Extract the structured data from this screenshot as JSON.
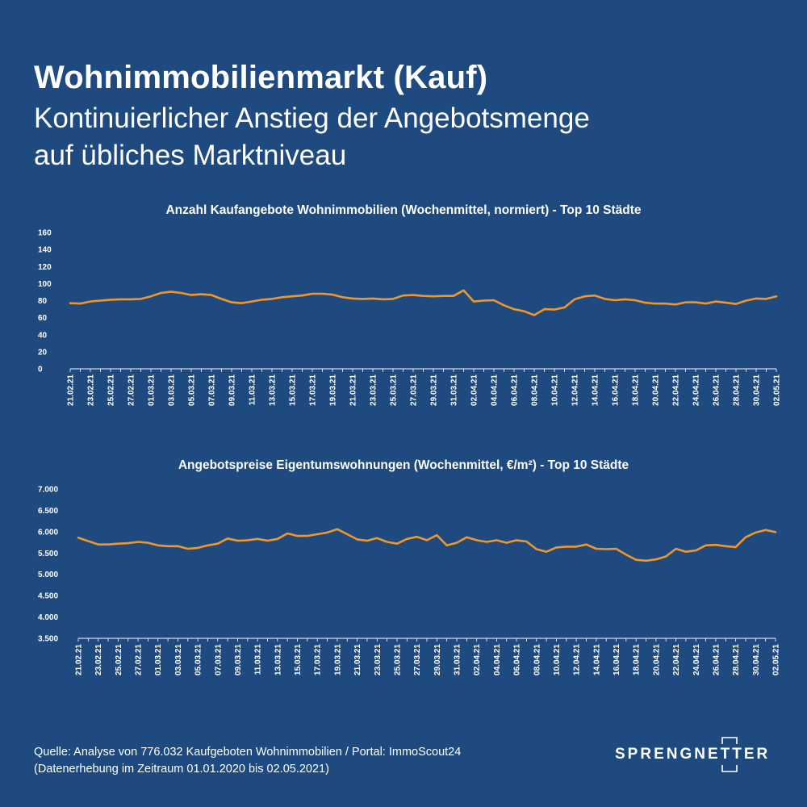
{
  "header": {
    "title": "Wohnimmobilienmarkt (Kauf)",
    "subtitle_line1": "Kontinuierlicher Anstieg der Angebotsmenge",
    "subtitle_line2": "auf übliches Marktniveau"
  },
  "colors": {
    "background": "#1f4a7f",
    "line": "#f0962a",
    "text": "#ffffff"
  },
  "chart_data": [
    {
      "type": "line",
      "title": "Anzahl Kaufangebote Wohnimmobilien (Wochenmittel, normiert) - Top 10 Städte",
      "xlabel": "",
      "ylabel": "",
      "ylim": [
        0,
        160
      ],
      "yticks": [
        0,
        20,
        40,
        60,
        80,
        100,
        120,
        140,
        160
      ],
      "yticklabels": [
        "0",
        "20",
        "40",
        "60",
        "80",
        "100",
        "120",
        "140",
        "160"
      ],
      "xticklabels": [
        "21.02.21",
        "23.02.21",
        "25.02.21",
        "27.02.21",
        "01.03.21",
        "03.03.21",
        "05.03.21",
        "07.03.21",
        "09.03.21",
        "11.03.21",
        "13.03.21",
        "15.03.21",
        "17.03.21",
        "19.03.21",
        "21.03.21",
        "23.03.21",
        "25.03.21",
        "27.03.21",
        "29.03.21",
        "31.03.21",
        "02.04.21",
        "04.04.21",
        "06.04.21",
        "08.04.21",
        "10.04.21",
        "12.04.21",
        "14.04.21",
        "16.04.21",
        "18.04.21",
        "20.04.21",
        "22.04.21",
        "24.04.21",
        "26.04.21",
        "28.04.21",
        "30.04.21",
        "02.05.21"
      ],
      "legend": "none",
      "series": [
        {
          "values": [
            77,
            76.5,
            79,
            80,
            81,
            81.5,
            81.5,
            82,
            85,
            89,
            90.5,
            89,
            86.5,
            87.5,
            86.5,
            82,
            78,
            77,
            79,
            81,
            82,
            84,
            85,
            86,
            88,
            88,
            87,
            84,
            82.5,
            82,
            82.5,
            81.5,
            82,
            86,
            86.5,
            85.5,
            85,
            85.5,
            85.5,
            92,
            79,
            80,
            80.5,
            74.5,
            70,
            67.5,
            63,
            70,
            69.5,
            72,
            81.5,
            85,
            86,
            82,
            80.5,
            81.5,
            80.5,
            77.5,
            76.5,
            76.5,
            75.5,
            78,
            78,
            76.5,
            79,
            77.5,
            76,
            80,
            82.5,
            82,
            85
          ]
        }
      ]
    },
    {
      "type": "line",
      "title": "Angebotspreise Eigentumswohnungen (Wochenmittel, €/m²) - Top 10 Städte",
      "xlabel": "",
      "ylabel": "",
      "ylim": [
        3500,
        7000
      ],
      "yticks": [
        3500,
        4000,
        4500,
        5000,
        5500,
        6000,
        6500,
        7000
      ],
      "yticklabels": [
        "3.500",
        "4.000",
        "4.500",
        "5.000",
        "5.500",
        "6.000",
        "6.500",
        "7.000"
      ],
      "xticklabels": [
        "21.02.21",
        "23.02.21",
        "25.02.21",
        "27.02.21",
        "01.03.21",
        "03.03.21",
        "05.03.21",
        "07.03.21",
        "09.03.21",
        "11.03.21",
        "13.03.21",
        "15.03.21",
        "17.03.21",
        "19.03.21",
        "21.03.21",
        "23.03.21",
        "25.03.21",
        "27.03.21",
        "29.03.21",
        "31.03.21",
        "02.04.21",
        "04.04.21",
        "06.04.21",
        "08.04.21",
        "10.04.21",
        "12.04.21",
        "14.04.21",
        "16.04.21",
        "18.04.21",
        "20.04.21",
        "22.04.21",
        "24.04.21",
        "26.04.21",
        "28.04.21",
        "30.04.21",
        "02.05.21"
      ],
      "legend": "none",
      "series": [
        {
          "values": [
            5860,
            5780,
            5700,
            5700,
            5720,
            5730,
            5760,
            5740,
            5680,
            5660,
            5660,
            5600,
            5620,
            5680,
            5720,
            5840,
            5790,
            5800,
            5830,
            5790,
            5830,
            5960,
            5900,
            5900,
            5940,
            5980,
            6060,
            5940,
            5820,
            5790,
            5850,
            5760,
            5720,
            5830,
            5880,
            5800,
            5920,
            5680,
            5740,
            5870,
            5800,
            5760,
            5800,
            5740,
            5800,
            5770,
            5590,
            5530,
            5630,
            5650,
            5650,
            5700,
            5600,
            5590,
            5600,
            5460,
            5340,
            5320,
            5350,
            5420,
            5600,
            5530,
            5560,
            5680,
            5690,
            5660,
            5640,
            5870,
            5980,
            6040,
            5990
          ]
        }
      ]
    }
  ],
  "footer": {
    "line1": "Quelle: Analyse von 776.032 Kaufgeboten Wohnimmobilien / Portal: ImmoScout24",
    "line2": "(Datenerhebung im Zeitraum 01.01.2020 bis  02.05.2021)"
  },
  "logo": {
    "text": "SPRENGNETTER",
    "icon": "sprengnetter-logo-icon"
  }
}
